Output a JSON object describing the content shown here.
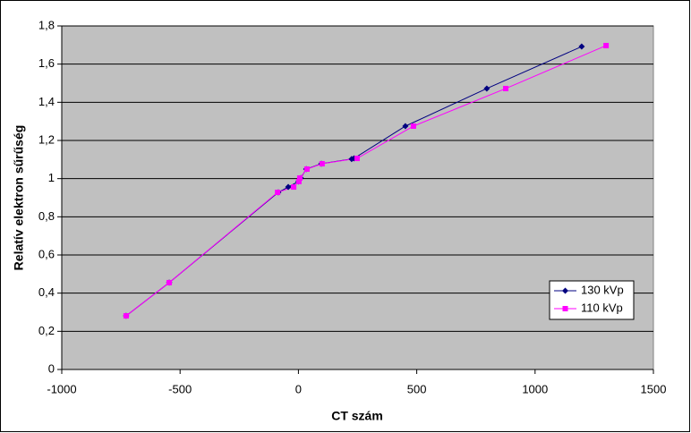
{
  "chart_data": {
    "type": "line",
    "x_label": "CT szám",
    "y_label": "Relatív elektron sűrűség",
    "xlim": [
      -1000,
      1500
    ],
    "xticks": [
      -1000,
      -500,
      0,
      500,
      1000,
      1500
    ],
    "ylim": [
      0,
      1.8
    ],
    "yticks": [
      0,
      {
        "value": 0.2,
        "label": "0,2"
      },
      {
        "value": 0.4,
        "label": "0,4"
      },
      {
        "value": 0.6,
        "label": "0,6"
      },
      {
        "value": 0.8,
        "label": "0,8"
      },
      1,
      {
        "value": 1.2,
        "label": "1,2"
      },
      {
        "value": 1.4,
        "label": "1,4"
      },
      {
        "value": 1.6,
        "label": "1,6"
      },
      {
        "value": 1.8,
        "label": "1,8"
      }
    ],
    "grid": true,
    "legend": "lower right",
    "series": [
      {
        "name": "130 kVp",
        "color": "#000080",
        "marker": "diamond",
        "x": [
          -728,
          -546,
          -85,
          -43,
          0,
          10,
          33,
          97,
          225,
          235,
          452,
          796,
          1197
        ],
        "values": [
          0.281,
          0.455,
          0.928,
          0.956,
          0.985,
          1.003,
          1.05,
          1.078,
          1.103,
          1.106,
          1.275,
          1.472,
          1.692
        ]
      },
      {
        "name": "110 kVp",
        "color": "#ff00ff",
        "marker": "square",
        "x": [
          -728,
          -546,
          -88,
          -20,
          2,
          6,
          36,
          100,
          248,
          486,
          876,
          1300
        ],
        "values": [
          0.281,
          0.455,
          0.928,
          0.956,
          0.985,
          1.003,
          1.05,
          1.078,
          1.106,
          1.275,
          1.472,
          1.697
        ]
      }
    ]
  }
}
